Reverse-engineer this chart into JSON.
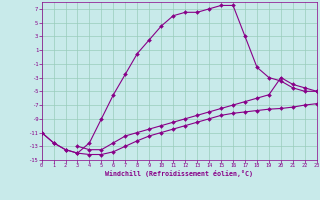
{
  "background_color": "#c8eaea",
  "grid_color": "#99ccbb",
  "line_color": "#880088",
  "marker_color": "#880088",
  "xlabel": "Windchill (Refroidissement éolien,°C)",
  "xlim": [
    0,
    23
  ],
  "ylim": [
    -15,
    8
  ],
  "xticks": [
    0,
    1,
    2,
    3,
    4,
    5,
    6,
    7,
    8,
    9,
    10,
    11,
    12,
    13,
    14,
    15,
    16,
    17,
    18,
    19,
    20,
    21,
    22,
    23
  ],
  "yticks": [
    -15,
    -13,
    -11,
    -9,
    -7,
    -5,
    -3,
    -1,
    1,
    3,
    5,
    7
  ],
  "curve1_x": [
    0,
    1,
    2,
    3,
    4,
    5,
    6,
    7,
    8,
    9,
    10,
    11,
    12,
    13,
    14,
    15,
    16,
    17,
    18,
    19,
    20,
    21,
    22,
    23
  ],
  "curve1_y": [
    -11,
    -12.5,
    -13.5,
    -14.0,
    -14.2,
    -14.2,
    -13.8,
    -13.0,
    -12.2,
    -11.5,
    -11.0,
    -10.5,
    -10.0,
    -9.5,
    -9.0,
    -8.5,
    -8.2,
    -8.0,
    -7.8,
    -7.6,
    -7.5,
    -7.3,
    -7.0,
    -6.8
  ],
  "curve2_x": [
    0,
    1,
    2,
    3,
    4,
    5,
    6,
    7,
    8,
    9,
    10,
    11,
    12,
    13,
    14,
    15,
    16,
    17,
    18,
    19,
    20,
    21,
    22,
    23
  ],
  "curve2_y": [
    -11.0,
    -12.5,
    -13.5,
    -14.0,
    -12.5,
    -9.0,
    -5.5,
    -2.5,
    0.5,
    2.5,
    4.5,
    6.0,
    6.5,
    6.5,
    7.0,
    7.5,
    7.5,
    3.0,
    -1.5,
    -3.0,
    -3.5,
    -4.5,
    -5.0,
    -5.0
  ],
  "curve3_x": [
    3,
    4,
    5,
    6,
    7,
    8,
    9,
    10,
    11,
    12,
    13,
    14,
    15,
    16,
    17,
    18,
    19,
    20,
    21,
    22,
    23
  ],
  "curve3_y": [
    -13.0,
    -13.5,
    -13.5,
    -12.5,
    -11.5,
    -11.0,
    -10.5,
    -10.0,
    -9.5,
    -9.0,
    -8.5,
    -8.0,
    -7.5,
    -7.0,
    -6.5,
    -6.0,
    -5.5,
    -3.0,
    -4.0,
    -4.5,
    -5.0
  ]
}
